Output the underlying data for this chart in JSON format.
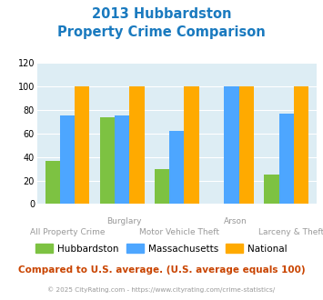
{
  "title_line1": "2013 Hubbardston",
  "title_line2": "Property Crime Comparison",
  "categories": [
    "All Property Crime",
    "Burglary",
    "Motor Vehicle Theft",
    "Arson",
    "Larceny & Theft"
  ],
  "top_labels": {
    "1": "Burglary",
    "3": "Arson"
  },
  "bottom_labels": {
    "0": "All Property Crime",
    "2": "Motor Vehicle Theft",
    "4": "Larceny & Theft"
  },
  "hubbardston": [
    37,
    74,
    30,
    0,
    25
  ],
  "massachusetts": [
    75,
    75,
    62,
    100,
    77
  ],
  "national": [
    100,
    100,
    100,
    100,
    100
  ],
  "hubbardston_color": "#7dc242",
  "massachusetts_color": "#4da6ff",
  "national_color": "#ffaa00",
  "ylim": [
    0,
    120
  ],
  "yticks": [
    0,
    20,
    40,
    60,
    80,
    100,
    120
  ],
  "title_color": "#1a7abf",
  "bg_color": "#ddedf4",
  "footer_text": "© 2025 CityRating.com - https://www.cityrating.com/crime-statistics/",
  "note_text": "Compared to U.S. average. (U.S. average equals 100)",
  "note_color": "#c94400",
  "footer_color": "#999999",
  "label_color": "#999999"
}
